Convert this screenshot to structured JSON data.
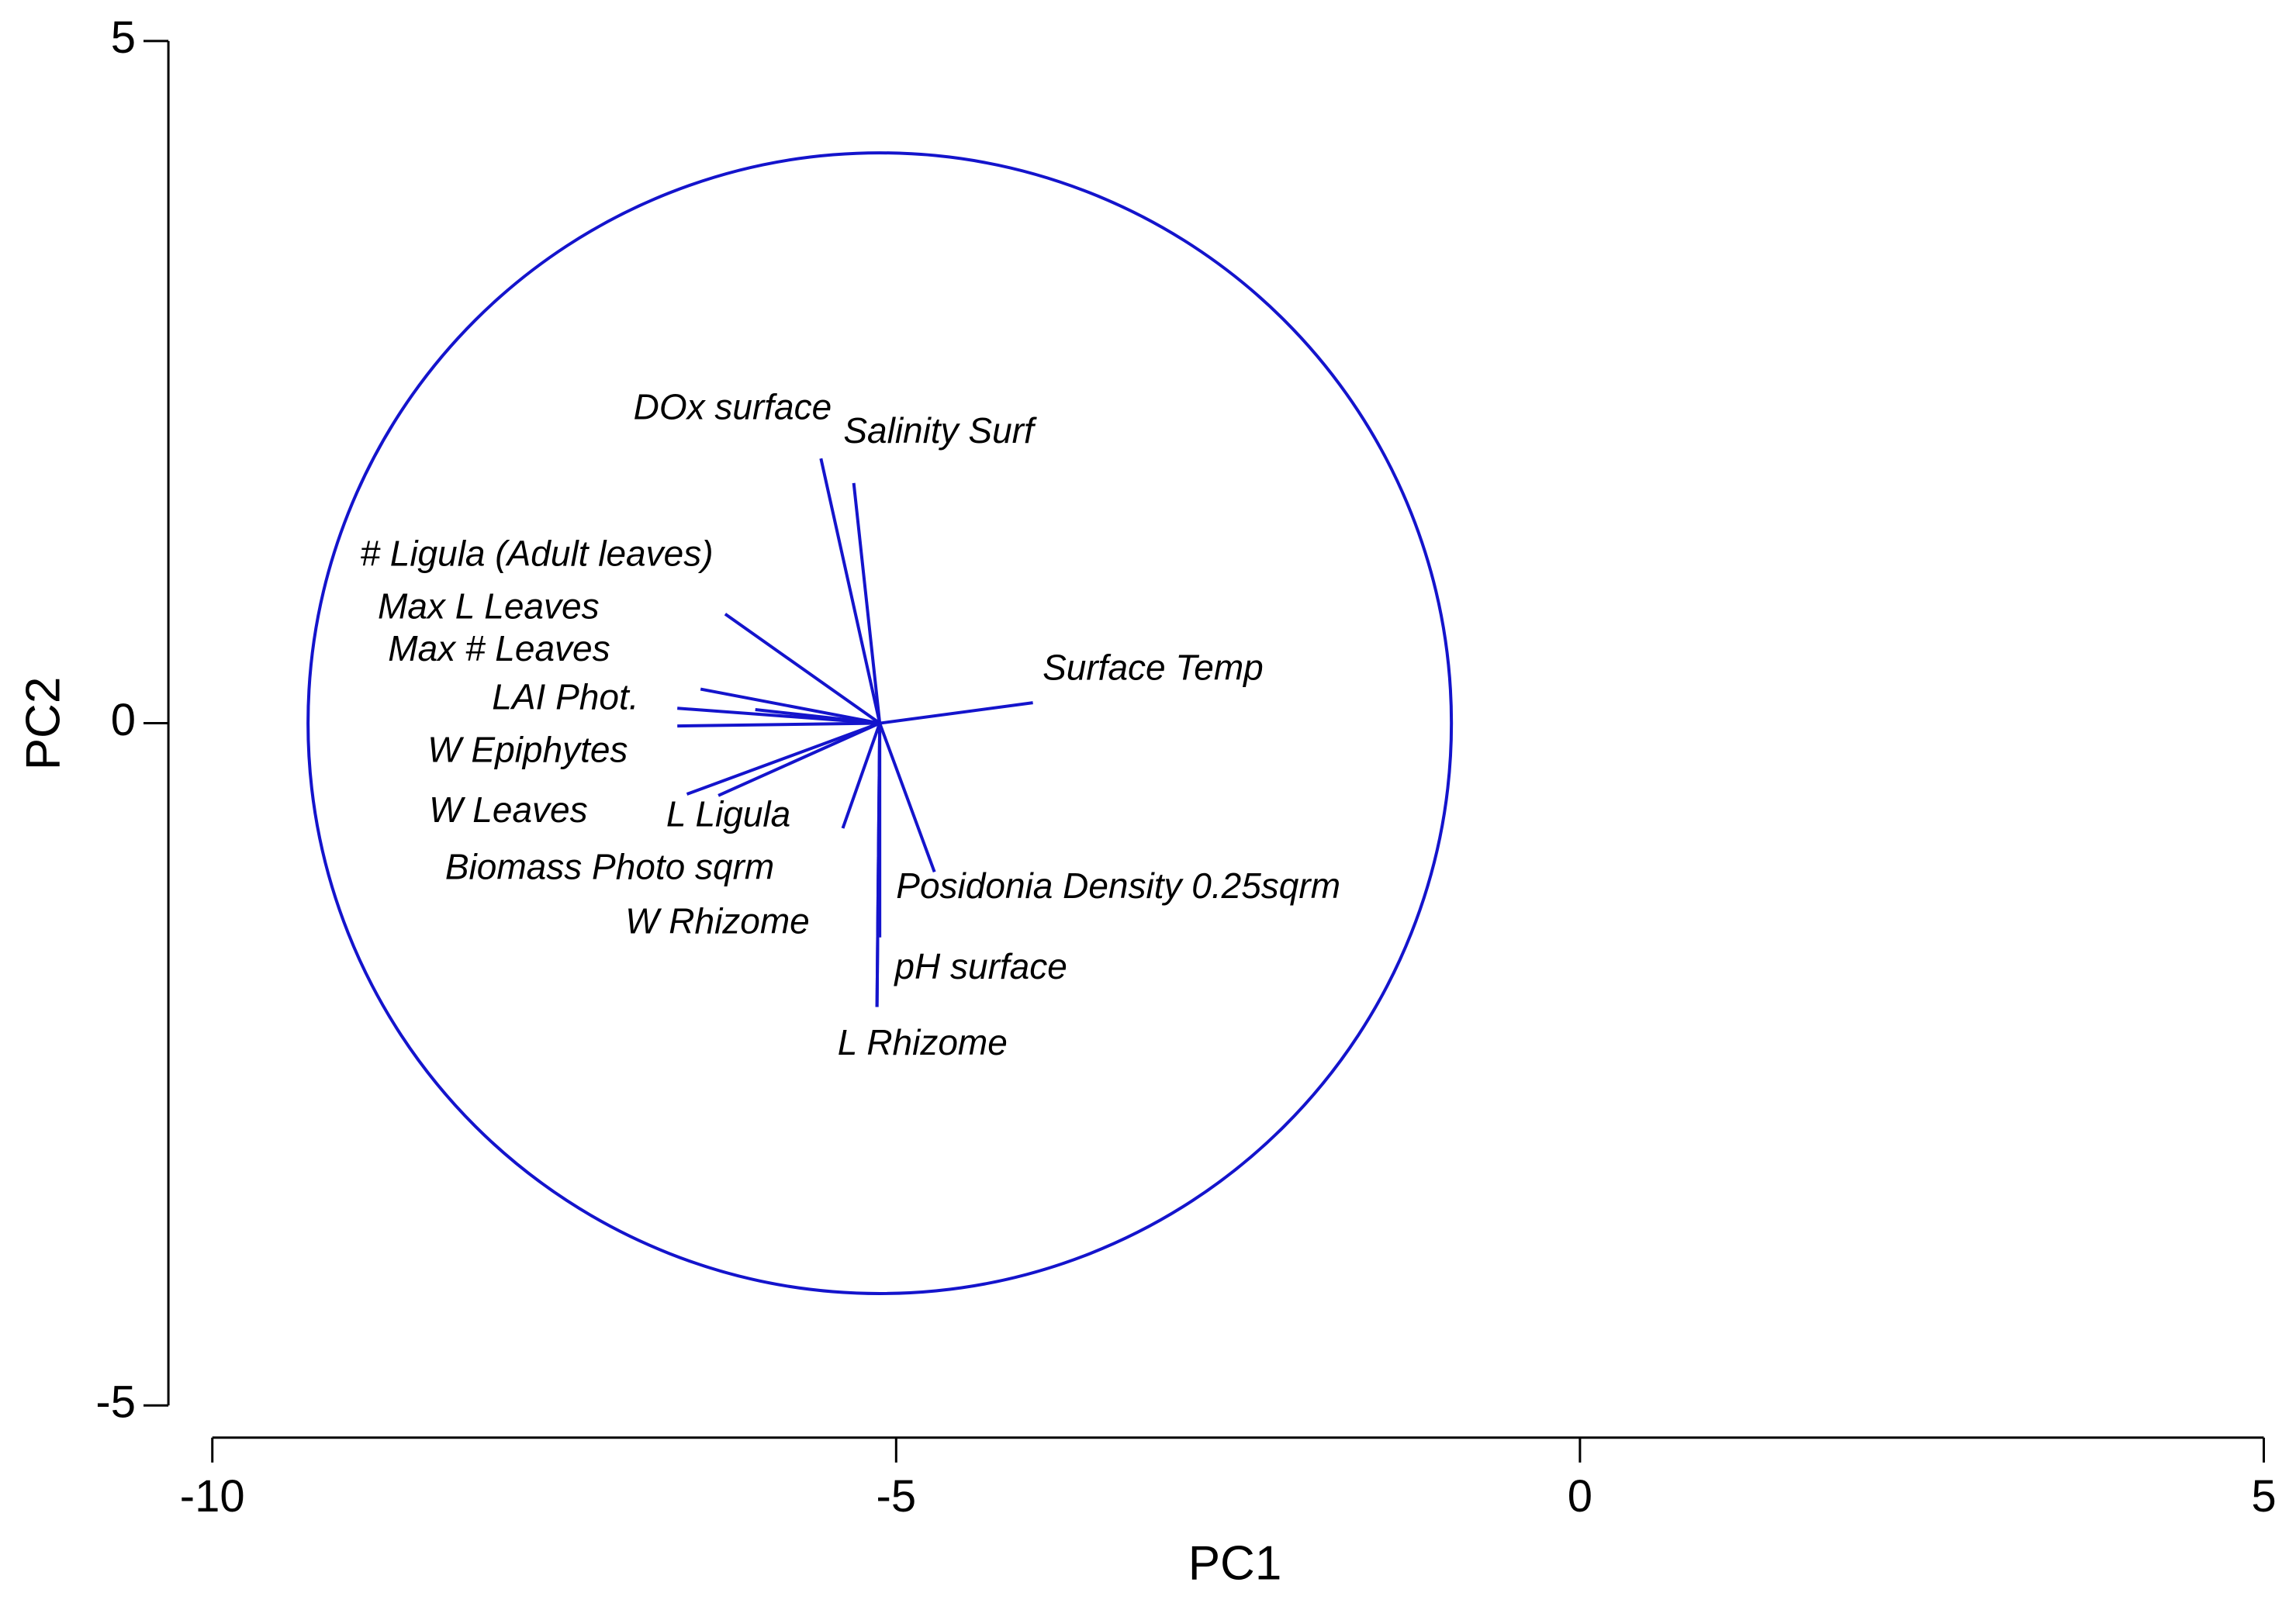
{
  "chart_data": {
    "type": "biplot",
    "xlabel": "PC1",
    "ylabel": "PC2",
    "xlim": [
      -10,
      5
    ],
    "ylim": [
      -5,
      5
    ],
    "xticks": [
      -10,
      -5,
      0,
      5
    ],
    "yticks": [
      -5,
      0,
      5
    ],
    "color": "#1414cc",
    "origin": [
      -5.12,
      0
    ],
    "circle": {
      "center": [
        -5.12,
        0
      ],
      "radius": 4.18
    },
    "vectors": [
      {
        "name": "DOx surface",
        "x": -5.55,
        "y": 1.94
      },
      {
        "name": "Salinity Surf",
        "x": -5.31,
        "y": 1.76
      },
      {
        "name": "# Ligula (Adult leaves)",
        "x": -6.25,
        "y": 0.8
      },
      {
        "name": "Max L Leaves",
        "x": -6.43,
        "y": 0.25
      },
      {
        "name": "Max # Leaves",
        "x": -6.6,
        "y": 0.11
      },
      {
        "name": "LAI Phot.",
        "x": -6.03,
        "y": 0.1
      },
      {
        "name": "W Epiphytes",
        "x": -6.6,
        "y": -0.02
      },
      {
        "name": "W Leaves",
        "x": -6.53,
        "y": -0.52
      },
      {
        "name": "L Ligula",
        "x": -6.3,
        "y": -0.53
      },
      {
        "name": "Biomass Photo sqrm",
        "x": -5.39,
        "y": -0.77
      },
      {
        "name": "W Rhizome",
        "x": -5.12,
        "y": -1.57
      },
      {
        "name": "Posidonia Density 0.25sqrm",
        "x": -4.72,
        "y": -1.09
      },
      {
        "name": "pH surface",
        "x": -5.14,
        "y": -2.08
      },
      {
        "name": "L Rhizome",
        "x": -5.14,
        "y": -2.08
      },
      {
        "name": "Surface Temp",
        "x": -4.0,
        "y": 0.15
      }
    ]
  }
}
